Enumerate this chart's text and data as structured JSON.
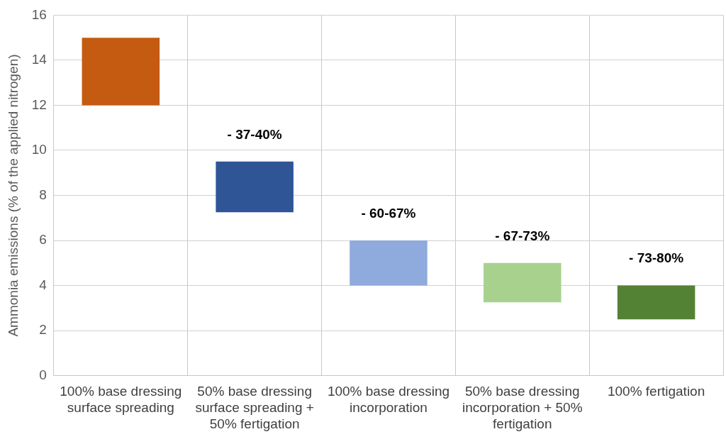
{
  "chart_data": {
    "type": "bar",
    "ylabel": "Ammonia emissions (% of the applied nitrogen)",
    "categories": [
      "100% base dressing surface spreading",
      "50% base dressing surface spreading + 50% fertigation",
      "100% base dressing incorporation",
      "50% base dressing incorporation + 50% fertigation",
      "100% fertigation"
    ],
    "values": [
      3,
      2.25,
      2,
      1.75,
      1.5
    ],
    "base": [
      12,
      7.25,
      4,
      3.25,
      2.5
    ],
    "colors": [
      "#c55a11",
      "#2f5597",
      "#8faadc",
      "#a9d18e",
      "#548235"
    ],
    "ylim": [
      0,
      16
    ],
    "yticks": [
      0,
      2,
      4,
      6,
      8,
      10,
      12,
      14,
      16
    ],
    "grid": true,
    "legend": false,
    "annotations": [
      {
        "text": "- 37-40%",
        "x": "50% base dressing surface spreading + 50% fertigation",
        "y": 9.5
      },
      {
        "text": "- 60-67%",
        "x": "100% base dressing incorporation",
        "y": 6
      },
      {
        "text": "- 67-73%",
        "x": "50% base dressing incorporation + 50% fertigation",
        "y": 5
      },
      {
        "text": "- 73-80%",
        "x": "100% fertigation",
        "y": 4
      }
    ]
  }
}
